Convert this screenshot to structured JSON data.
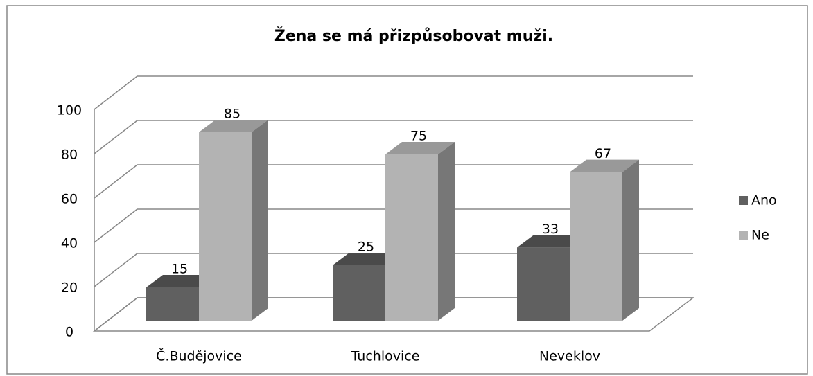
{
  "chart_data": {
    "type": "bar3d",
    "title": "Žena se má přizpůsobovat muži.",
    "categories": [
      "Č.Budějovice",
      "Tuchlovice",
      "Neveklov"
    ],
    "series": [
      {
        "name": "Ano",
        "color": "#606060",
        "values": [
          15,
          25,
          33
        ]
      },
      {
        "name": "Ne",
        "color": "#b3b3b3",
        "values": [
          85,
          75,
          67
        ]
      }
    ],
    "ylim": [
      0,
      100
    ],
    "yticks": [
      0,
      20,
      40,
      60,
      80,
      100
    ],
    "grid": true,
    "legend": "right"
  }
}
